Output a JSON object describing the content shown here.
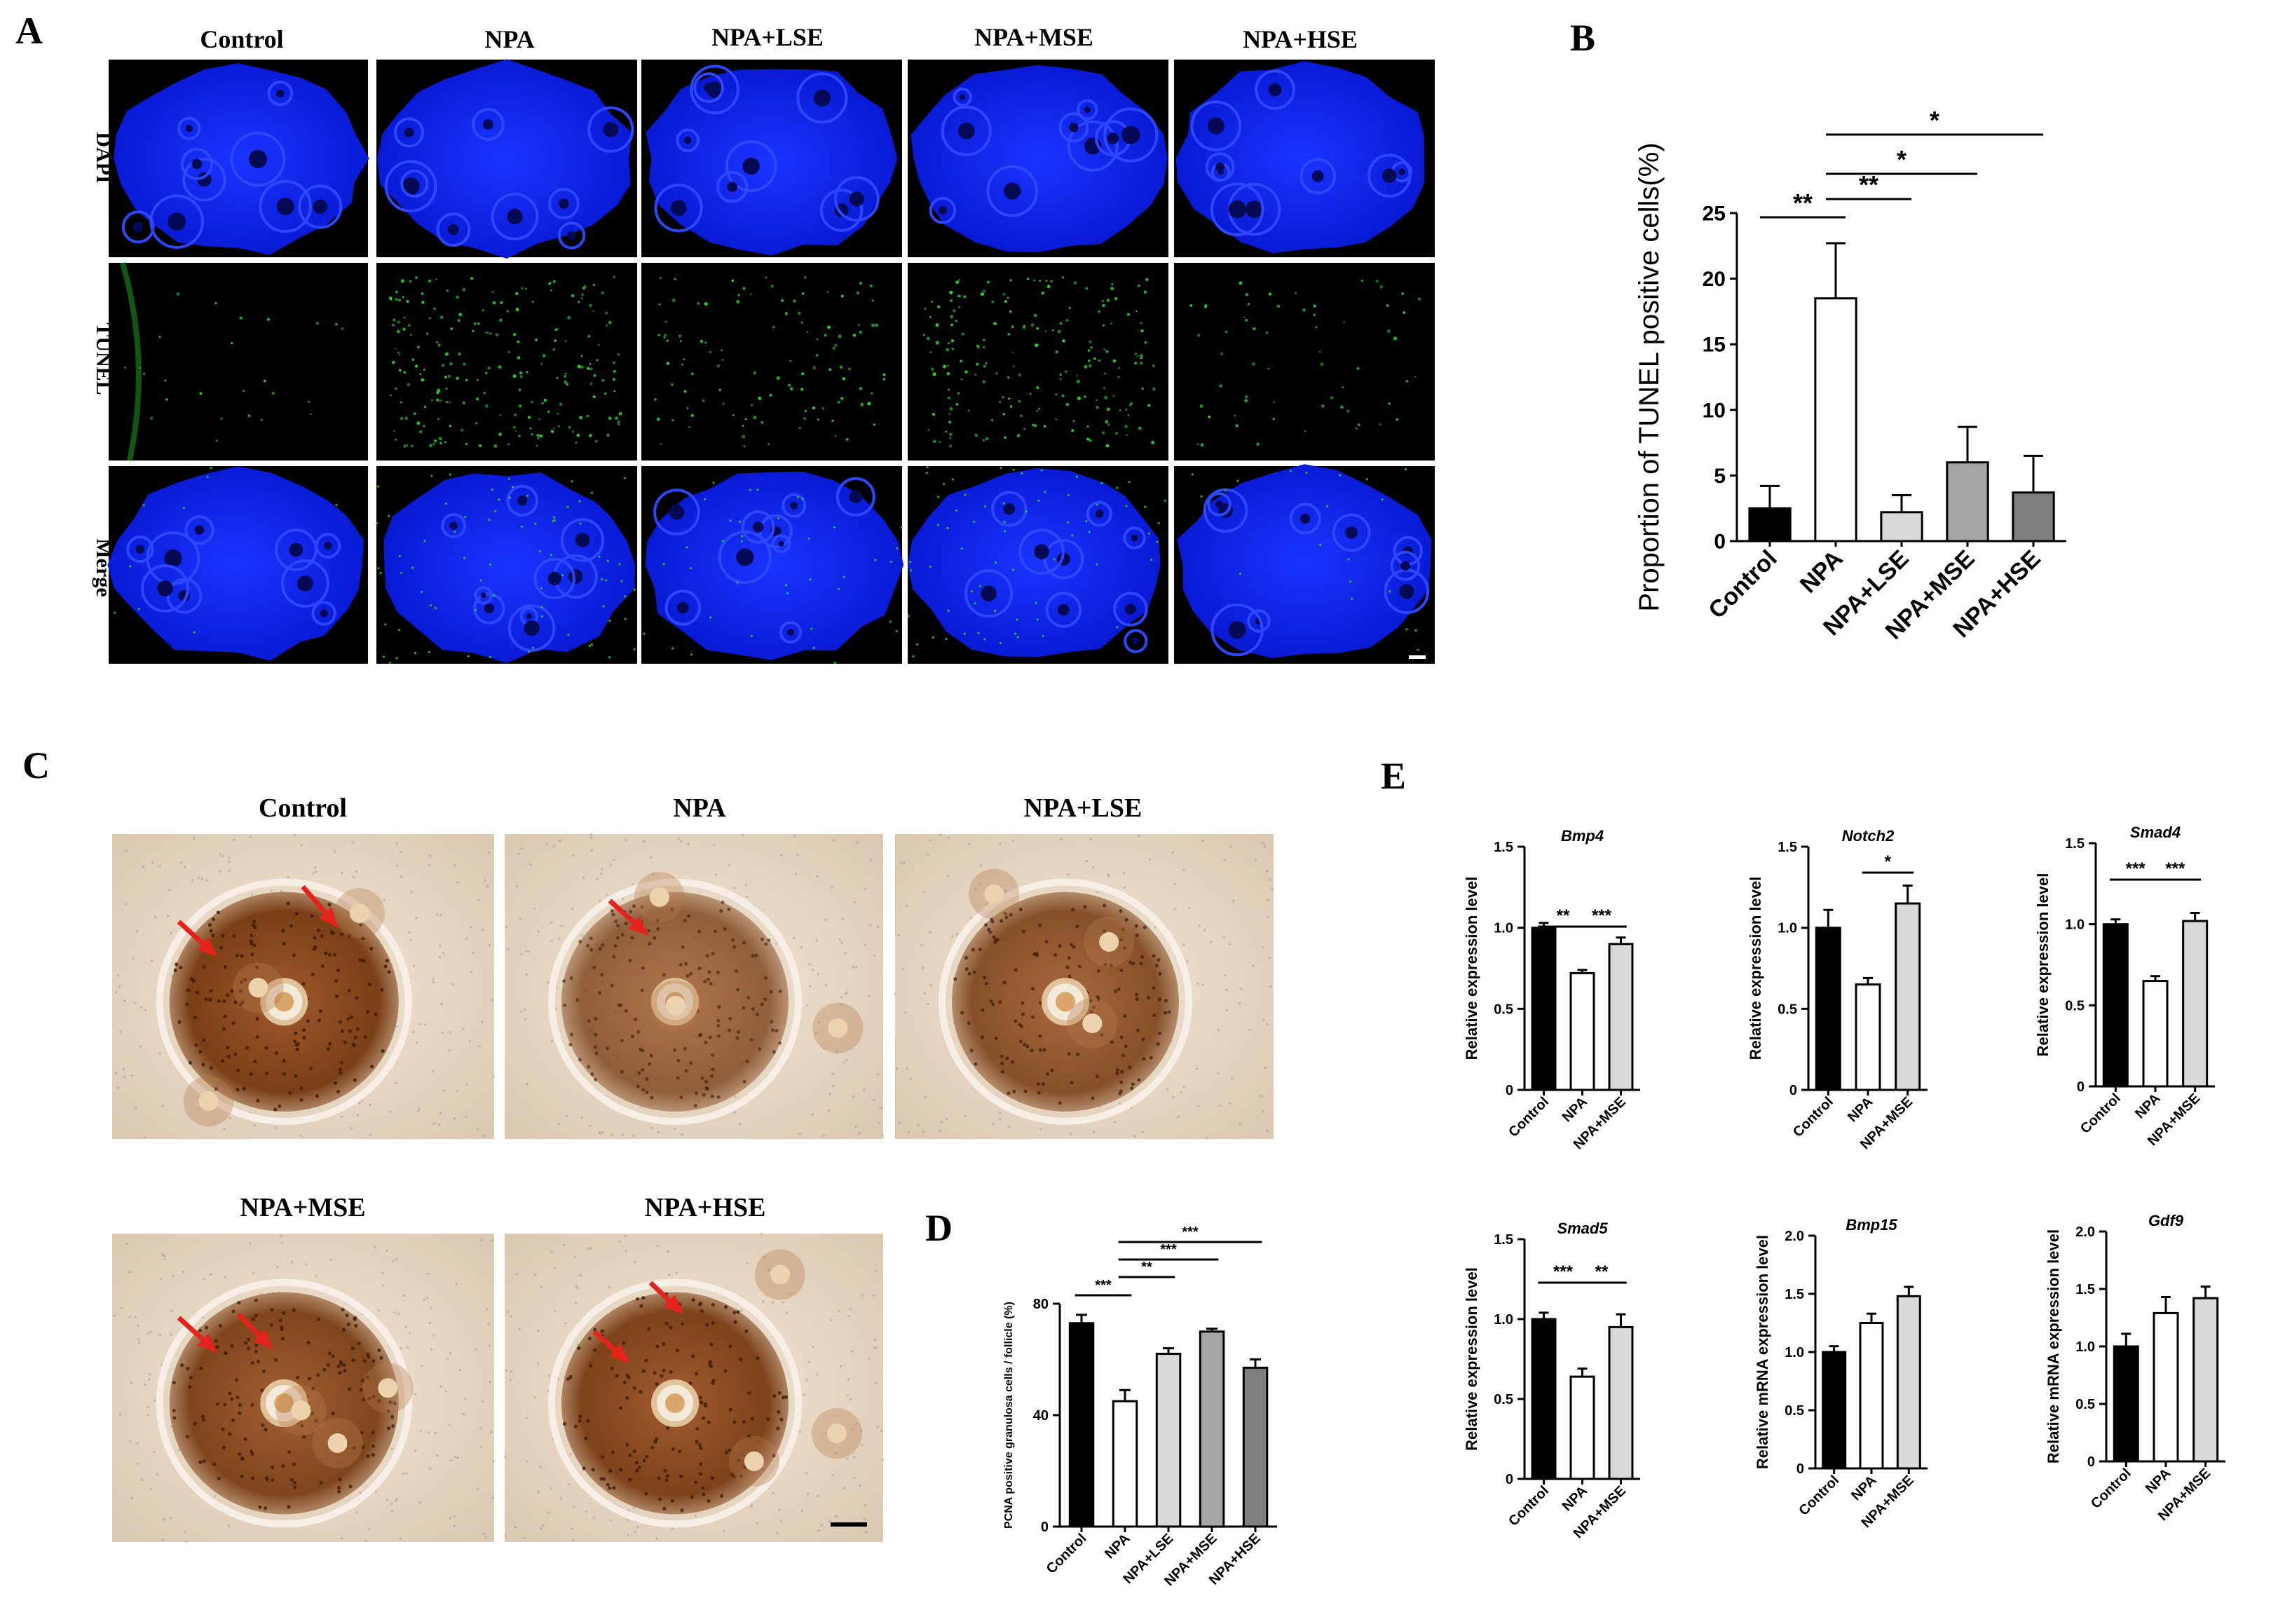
{
  "panels": {
    "A": {
      "letter": "A",
      "columns": [
        "Control",
        "NPA",
        "NPA+LSE",
        "NPA+MSE",
        "NPA+HSE"
      ],
      "rows": [
        "DAPI",
        "TUNEL",
        "Merge"
      ]
    },
    "B": {
      "letter": "B"
    },
    "C": {
      "letter": "C",
      "titles": [
        "Control",
        "NPA",
        "NPA+LSE",
        "NPA+MSE",
        "NPA+HSE"
      ]
    },
    "D": {
      "letter": "D"
    },
    "E": {
      "letter": "E"
    }
  },
  "colors": {
    "black": "#000000",
    "white": "#ffffff",
    "light_gray": "#d9d9d9",
    "mid_gray": "#a6a6a6",
    "dark_gray": "#7f7f7f",
    "dapi_blue": "#0a1bd6",
    "tunel_green": "#2bd62b",
    "tissue_bg": "#eadbc7",
    "stain_brown": "#8a4a20",
    "arrow_red": "#e3231c"
  },
  "chart_data": [
    {
      "id": "B",
      "type": "bar",
      "categories": [
        "Control",
        "NPA",
        "NPA+LSE",
        "NPA+MSE",
        "NPA+HSE"
      ],
      "values": [
        2.5,
        18.5,
        2.2,
        6.0,
        3.7
      ],
      "errors": [
        1.7,
        4.2,
        1.3,
        2.7,
        2.8
      ],
      "fills": [
        "black",
        "white",
        "light_gray",
        "mid_gray",
        "dark_gray"
      ],
      "ylabel": "Proportion of TUNEL positive cells(%)",
      "ylim": [
        0,
        25
      ],
      "yticks": [
        "0",
        "5",
        "10",
        "15",
        "20",
        "25"
      ],
      "significance": [
        {
          "from": 0,
          "to": 1,
          "label": "**"
        },
        {
          "from": 1,
          "to": 2,
          "label": "**"
        },
        {
          "from": 1,
          "to": 3,
          "label": "*"
        },
        {
          "from": 1,
          "to": 4,
          "label": "*"
        }
      ]
    },
    {
      "id": "D",
      "type": "bar",
      "categories": [
        "Control",
        "NPA",
        "NPA+LSE",
        "NPA+MSE",
        "NPA+HSE"
      ],
      "values": [
        73,
        45,
        62,
        70,
        57
      ],
      "errors": [
        3,
        4,
        2,
        1,
        3
      ],
      "fills": [
        "black",
        "white",
        "light_gray",
        "mid_gray",
        "dark_gray"
      ],
      "ylabel": "PCNA positive granulosa cells / follicle (%)",
      "ylim": [
        0,
        80
      ],
      "yticks": [
        "0",
        "40",
        "80"
      ],
      "significance": [
        {
          "from": 0,
          "to": 1,
          "label": "***"
        },
        {
          "from": 1,
          "to": 2,
          "label": "**"
        },
        {
          "from": 1,
          "to": 3,
          "label": "***"
        },
        {
          "from": 1,
          "to": 4,
          "label": "***"
        }
      ]
    },
    {
      "id": "E1",
      "type": "bar",
      "title": "Bmp4",
      "categories": [
        "Control",
        "NPA",
        "NPA+MSE"
      ],
      "values": [
        1.0,
        0.72,
        0.9
      ],
      "errors": [
        0.03,
        0.02,
        0.04
      ],
      "fills": [
        "black",
        "white",
        "light_gray"
      ],
      "ylabel": "Relative expression level",
      "ylim": [
        0,
        1.5
      ],
      "yticks": [
        "0",
        "0.5",
        "1.0",
        "1.5"
      ],
      "significance": [
        {
          "from": 0,
          "to": 1,
          "label": "**"
        },
        {
          "from": 1,
          "to": 2,
          "label": "***"
        }
      ]
    },
    {
      "id": "E2",
      "type": "bar",
      "title": "Notch2",
      "categories": [
        "Control",
        "NPA",
        "NPA+MSE"
      ],
      "values": [
        1.0,
        0.65,
        1.15
      ],
      "errors": [
        0.11,
        0.04,
        0.11
      ],
      "fills": [
        "black",
        "white",
        "light_gray"
      ],
      "ylabel": "Relative expression level",
      "ylim": [
        0,
        1.5
      ],
      "yticks": [
        "0",
        "0.5",
        "1.0",
        "1.5"
      ],
      "significance": [
        {
          "from": 1,
          "to": 2,
          "label": "*"
        }
      ]
    },
    {
      "id": "E3",
      "type": "bar",
      "title": "Smad4",
      "categories": [
        "Control",
        "NPA",
        "NPA+MSE"
      ],
      "values": [
        1.0,
        0.65,
        1.02
      ],
      "errors": [
        0.03,
        0.03,
        0.05
      ],
      "fills": [
        "black",
        "white",
        "light_gray"
      ],
      "ylabel": "Relative expression level",
      "ylim": [
        0,
        1.5
      ],
      "yticks": [
        "0",
        "0.5",
        "1.0",
        "1.5"
      ],
      "significance": [
        {
          "from": 0,
          "to": 1,
          "label": "***"
        },
        {
          "from": 1,
          "to": 2,
          "label": "***"
        }
      ]
    },
    {
      "id": "E4",
      "type": "bar",
      "title": "Smad5",
      "categories": [
        "Control",
        "NPA",
        "NPA+MSE"
      ],
      "values": [
        1.0,
        0.64,
        0.95
      ],
      "errors": [
        0.04,
        0.05,
        0.08
      ],
      "fills": [
        "black",
        "white",
        "light_gray"
      ],
      "ylabel": "Relative expression level",
      "ylim": [
        0,
        1.5
      ],
      "yticks": [
        "0",
        "0.5",
        "1.0",
        "1.5"
      ],
      "significance": [
        {
          "from": 0,
          "to": 1,
          "label": "***"
        },
        {
          "from": 1,
          "to": 2,
          "label": "**"
        }
      ]
    },
    {
      "id": "E5",
      "type": "bar",
      "title": "Bmp15",
      "categories": [
        "Control",
        "NPA",
        "NPA+MSE"
      ],
      "values": [
        1.0,
        1.25,
        1.48
      ],
      "errors": [
        0.05,
        0.08,
        0.08
      ],
      "fills": [
        "black",
        "white",
        "light_gray"
      ],
      "ylabel": "Relative mRNA expression level",
      "ylim": [
        0,
        2.0
      ],
      "yticks": [
        "0",
        "0.5",
        "1.0",
        "1.5",
        "2.0"
      ],
      "significance": []
    },
    {
      "id": "E6",
      "type": "bar",
      "title": "Gdf9",
      "categories": [
        "Control",
        "NPA",
        "NPA+MSE"
      ],
      "values": [
        1.0,
        1.29,
        1.42
      ],
      "errors": [
        0.11,
        0.14,
        0.1
      ],
      "fills": [
        "black",
        "white",
        "light_gray"
      ],
      "ylabel": "Relative mRNA expression level",
      "ylim": [
        0,
        2.0
      ],
      "yticks": [
        "0",
        "0.5",
        "1.0",
        "1.5",
        "2.0"
      ],
      "significance": []
    }
  ]
}
